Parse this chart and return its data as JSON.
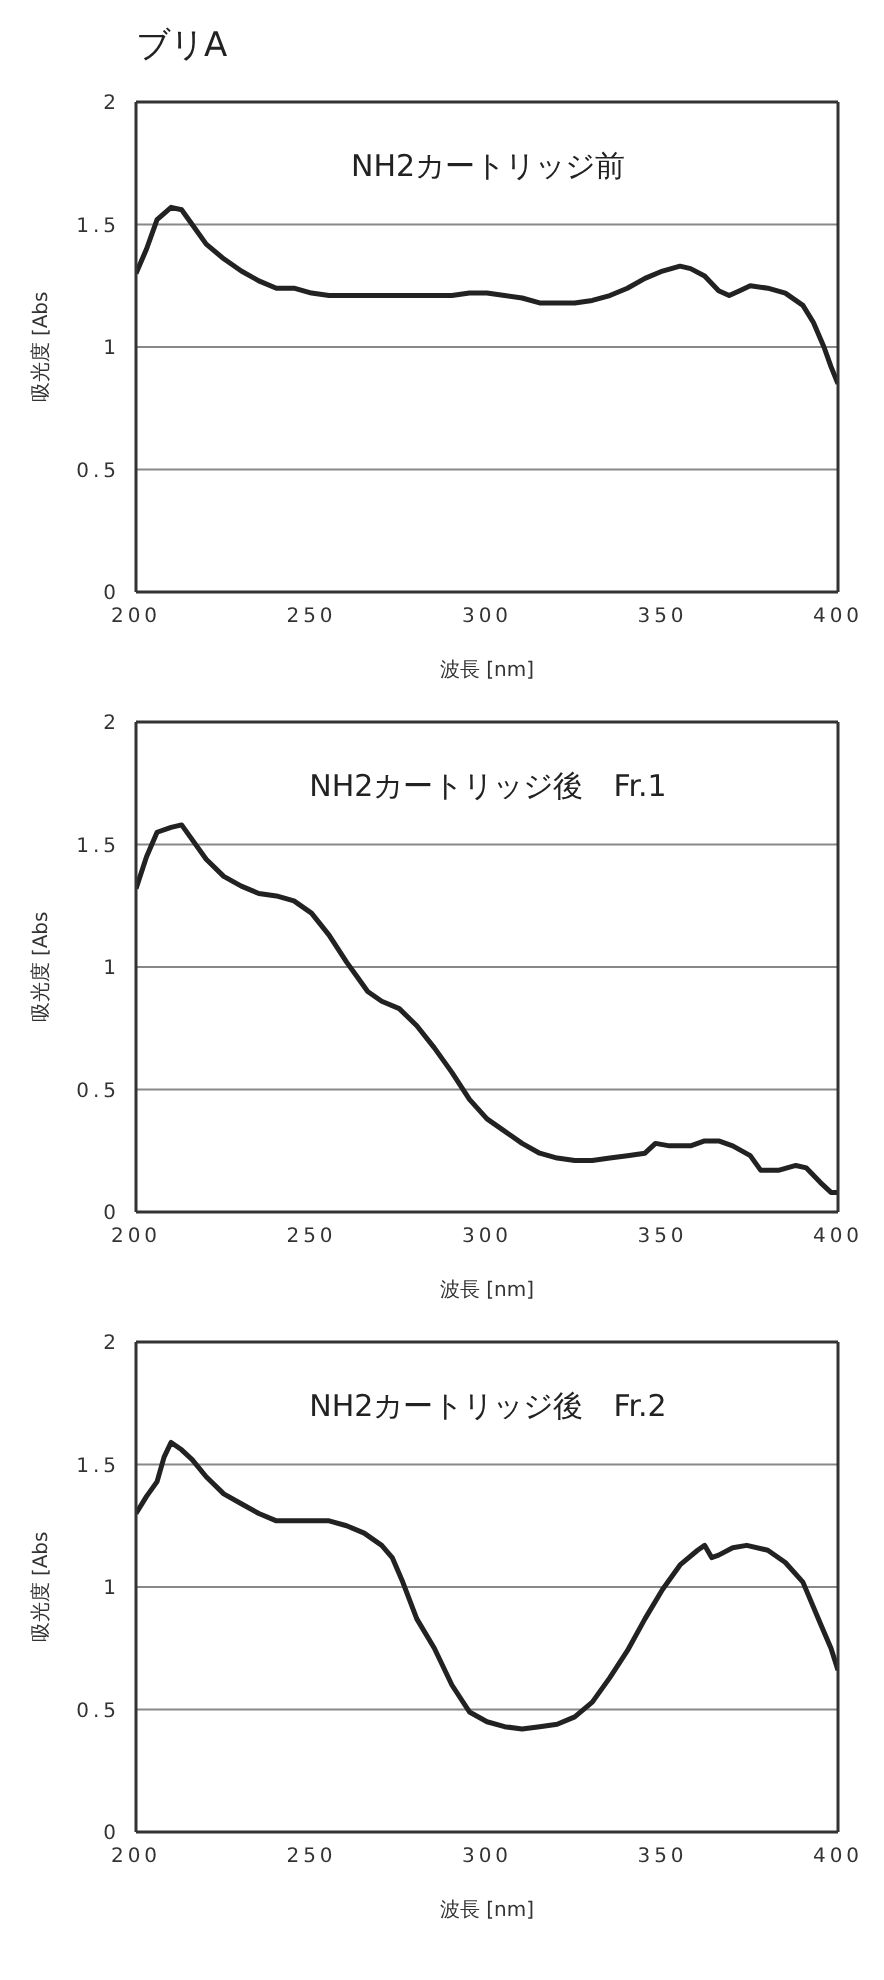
{
  "chart_data": [
    {
      "type": "line",
      "title": "ブリA",
      "subtitle": "NH2カートリッジ前",
      "xlabel": "波長 [nm]",
      "ylabel": "吸光度 [Abs",
      "xlim": [
        200,
        400
      ],
      "xticks": [
        200,
        250,
        300,
        350,
        400
      ],
      "ylim": [
        0,
        2
      ],
      "yticks": [
        0,
        0.5,
        1,
        1.5,
        2
      ],
      "grid": "y",
      "series": [
        {
          "color": "#222222",
          "x": [
            200,
            203,
            206,
            210,
            213,
            216,
            220,
            225,
            230,
            235,
            240,
            245,
            250,
            255,
            260,
            270,
            280,
            290,
            295,
            300,
            305,
            310,
            315,
            320,
            325,
            330,
            335,
            340,
            345,
            350,
            355,
            358,
            362,
            366,
            369,
            372,
            375,
            380,
            385,
            390,
            393,
            396,
            398,
            400
          ],
          "values": [
            1.3,
            1.4,
            1.52,
            1.57,
            1.56,
            1.5,
            1.42,
            1.36,
            1.31,
            1.27,
            1.24,
            1.24,
            1.22,
            1.21,
            1.21,
            1.21,
            1.21,
            1.21,
            1.22,
            1.22,
            1.21,
            1.2,
            1.18,
            1.18,
            1.18,
            1.19,
            1.21,
            1.24,
            1.28,
            1.31,
            1.33,
            1.32,
            1.29,
            1.23,
            1.21,
            1.23,
            1.25,
            1.24,
            1.22,
            1.17,
            1.1,
            1.0,
            0.92,
            0.85
          ]
        }
      ]
    },
    {
      "type": "line",
      "subtitle": "NH2カートリッジ後　Fr.1",
      "xlabel": "波長 [nm]",
      "ylabel": "吸光度 [Abs",
      "xlim": [
        200,
        400
      ],
      "xticks": [
        200,
        250,
        300,
        350,
        400
      ],
      "ylim": [
        0,
        2
      ],
      "yticks": [
        0,
        0.5,
        1,
        1.5,
        2
      ],
      "grid": "y",
      "series": [
        {
          "color": "#222222",
          "x": [
            200,
            203,
            206,
            210,
            213,
            216,
            220,
            225,
            230,
            235,
            240,
            245,
            250,
            255,
            260,
            263,
            266,
            270,
            275,
            280,
            285,
            290,
            295,
            300,
            305,
            310,
            315,
            320,
            325,
            330,
            335,
            340,
            345,
            348,
            352,
            358,
            362,
            366,
            370,
            375,
            378,
            383,
            388,
            391,
            395,
            398,
            400
          ],
          "values": [
            1.32,
            1.45,
            1.55,
            1.57,
            1.58,
            1.52,
            1.44,
            1.37,
            1.33,
            1.3,
            1.29,
            1.27,
            1.22,
            1.13,
            1.02,
            0.96,
            0.9,
            0.86,
            0.83,
            0.76,
            0.67,
            0.57,
            0.46,
            0.38,
            0.33,
            0.28,
            0.24,
            0.22,
            0.21,
            0.21,
            0.22,
            0.23,
            0.24,
            0.28,
            0.27,
            0.27,
            0.29,
            0.29,
            0.27,
            0.23,
            0.17,
            0.17,
            0.19,
            0.18,
            0.12,
            0.08,
            0.08
          ]
        }
      ]
    },
    {
      "type": "line",
      "subtitle": "NH2カートリッジ後　Fr.2",
      "xlabel": "波長 [nm]",
      "ylabel": "吸光度 [Abs",
      "xlim": [
        200,
        400
      ],
      "xticks": [
        200,
        250,
        300,
        350,
        400
      ],
      "ylim": [
        0,
        2
      ],
      "yticks": [
        0,
        0.5,
        1,
        1.5,
        2
      ],
      "grid": "y",
      "series": [
        {
          "color": "#222222",
          "x": [
            200,
            203,
            206,
            208,
            210,
            213,
            216,
            220,
            225,
            230,
            235,
            240,
            245,
            250,
            255,
            260,
            265,
            270,
            273,
            276,
            280,
            285,
            290,
            295,
            300,
            305,
            310,
            315,
            320,
            325,
            330,
            335,
            340,
            345,
            350,
            355,
            360,
            362,
            364,
            366,
            370,
            374,
            380,
            385,
            390,
            395,
            398,
            400
          ],
          "values": [
            1.3,
            1.37,
            1.43,
            1.53,
            1.59,
            1.56,
            1.52,
            1.45,
            1.38,
            1.34,
            1.3,
            1.27,
            1.27,
            1.27,
            1.27,
            1.25,
            1.22,
            1.17,
            1.12,
            1.02,
            0.87,
            0.75,
            0.6,
            0.49,
            0.45,
            0.43,
            0.42,
            0.43,
            0.44,
            0.47,
            0.53,
            0.63,
            0.74,
            0.87,
            0.99,
            1.09,
            1.15,
            1.17,
            1.12,
            1.13,
            1.16,
            1.17,
            1.15,
            1.1,
            1.02,
            0.85,
            0.75,
            0.66
          ]
        }
      ]
    }
  ]
}
